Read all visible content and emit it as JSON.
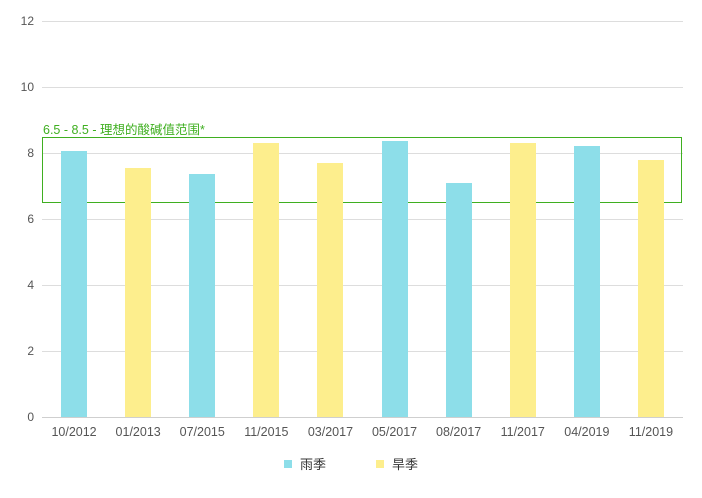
{
  "chart_data": {
    "type": "bar",
    "categories": [
      "10/2012",
      "01/2013",
      "07/2015",
      "11/2015",
      "03/2017",
      "05/2017",
      "08/2017",
      "11/2017",
      "04/2019",
      "11/2019"
    ],
    "series": [
      {
        "name": "雨季",
        "color": "#8ddee9",
        "values": [
          8.05,
          null,
          7.35,
          null,
          null,
          8.35,
          7.1,
          null,
          8.2,
          null
        ]
      },
      {
        "name": "旱季",
        "color": "#fdee8d",
        "values": [
          null,
          7.55,
          null,
          8.3,
          7.7,
          null,
          null,
          8.3,
          null,
          7.8
        ]
      }
    ],
    "title": "",
    "xlabel": "",
    "ylabel": "",
    "ylim": [
      0,
      12
    ],
    "yticks": [
      0,
      2,
      4,
      6,
      8,
      10,
      12
    ],
    "grid": true,
    "legend_position": "bottom",
    "annotation": {
      "label": "6.5 - 8.5 - 理想的酸碱值范围*",
      "range_from": 6.5,
      "range_to": 8.5,
      "color": "#3faf20"
    }
  },
  "colors": {
    "background": "#ffffff",
    "gridline": "#dddddd",
    "axis_line": "#cfcfcf",
    "tick_label": "#555555",
    "legend_text": "#333333",
    "annotation_green": "#3faf20"
  }
}
